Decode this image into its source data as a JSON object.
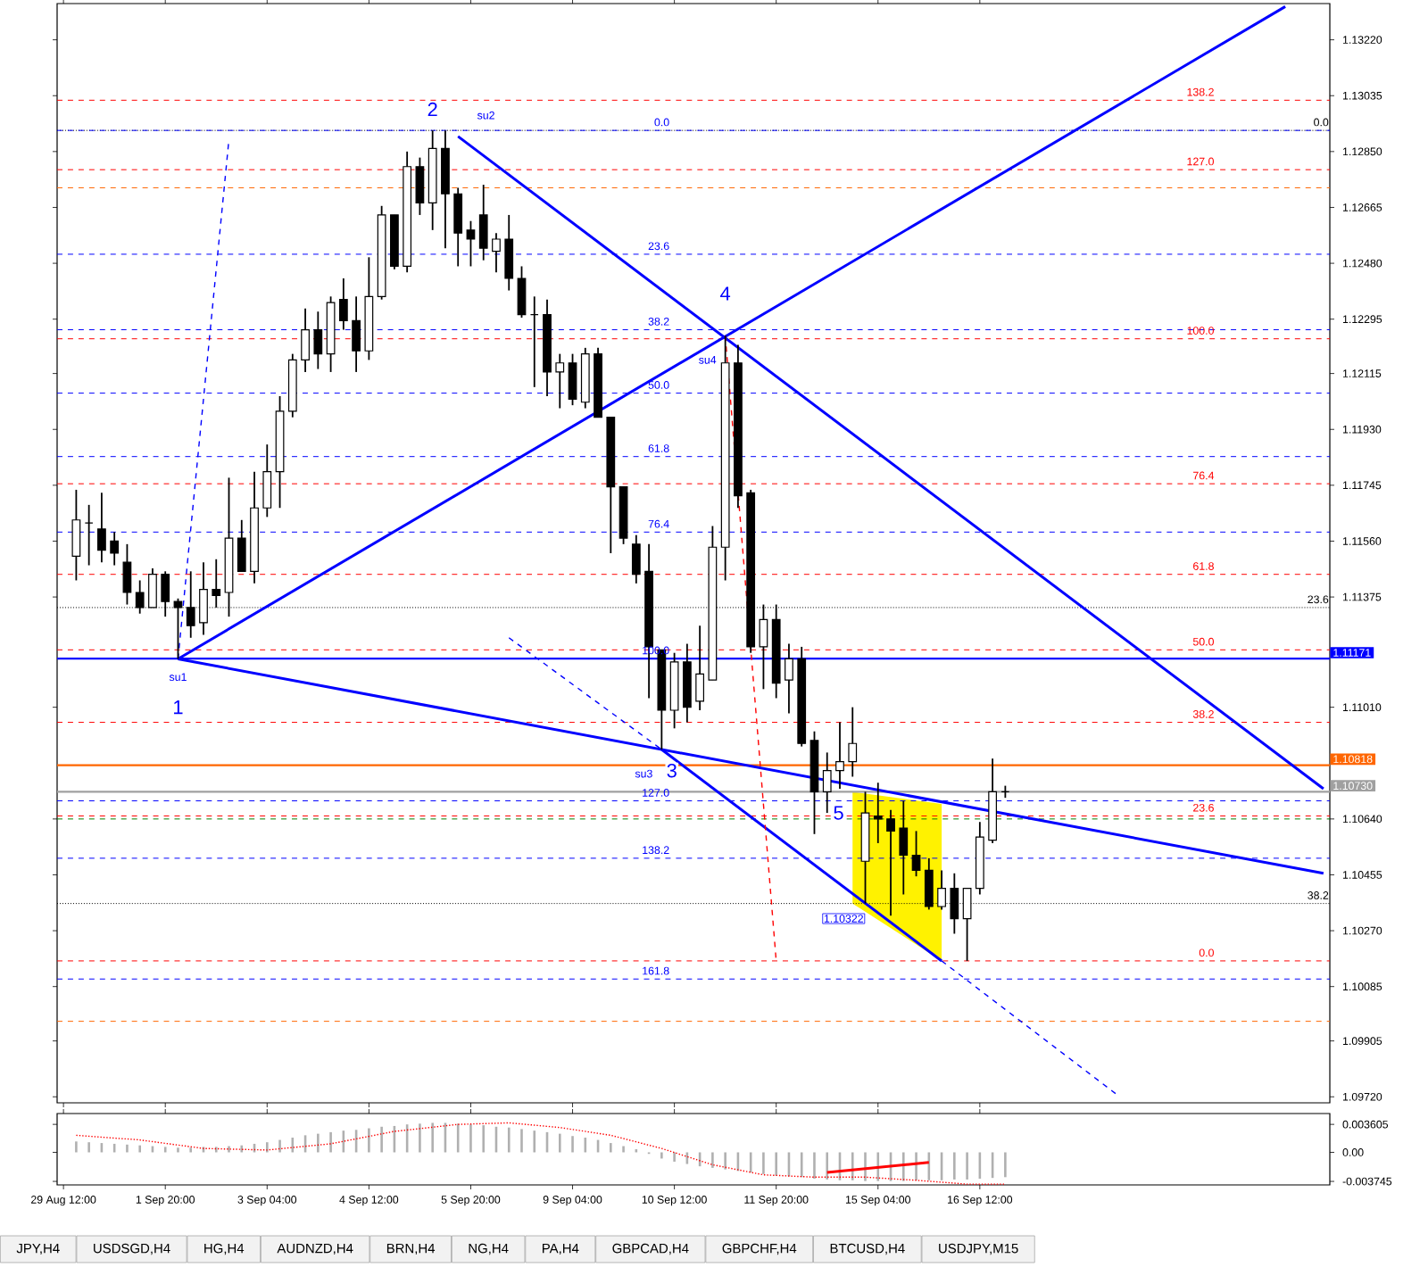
{
  "chart_data": [
    {
      "type": "candlestick",
      "ohlc": [
        null,
        [
          1.1151,
          1.1173,
          1.1143,
          1.1163
        ],
        [
          1.1162,
          1.1168,
          1.1148,
          1.1162
        ],
        [
          1.116,
          1.1172,
          1.1149,
          1.1153
        ],
        [
          1.1156,
          1.1159,
          1.1148,
          1.1152
        ],
        [
          1.1149,
          1.1155,
          1.1135,
          1.1139
        ],
        [
          1.1139,
          1.1143,
          1.1132,
          1.1134
        ],
        [
          1.1134,
          1.1147,
          1.1134,
          1.1145
        ],
        [
          1.1145,
          1.1146,
          1.1131,
          1.1136
        ],
        [
          1.1136,
          1.1137,
          1.1117,
          1.1134
        ],
        [
          1.1134,
          1.1146,
          1.1124,
          1.1128
        ],
        [
          1.1129,
          1.1149,
          1.1125,
          1.114
        ],
        [
          1.114,
          1.115,
          1.1134,
          1.1138
        ],
        [
          1.1139,
          1.1177,
          1.1131,
          1.1157
        ],
        [
          1.1157,
          1.1163,
          1.1146,
          1.1146
        ],
        [
          1.1146,
          1.1179,
          1.1142,
          1.1167
        ],
        [
          1.1167,
          1.1188,
          1.1164,
          1.1179
        ],
        [
          1.1179,
          1.1204,
          1.1167,
          1.1199
        ],
        [
          1.1199,
          1.1218,
          1.1197,
          1.1216
        ],
        [
          1.1216,
          1.1233,
          1.1212,
          1.1226
        ],
        [
          1.1226,
          1.1232,
          1.1213,
          1.1218
        ],
        [
          1.1218,
          1.1237,
          1.1212,
          1.1235
        ],
        [
          1.1236,
          1.1243,
          1.1226,
          1.1229
        ],
        [
          1.1229,
          1.1237,
          1.1212,
          1.1219
        ],
        [
          1.1219,
          1.125,
          1.1216,
          1.1237
        ],
        [
          1.1237,
          1.1267,
          1.1236,
          1.1264
        ],
        [
          1.1264,
          1.1264,
          1.1246,
          1.1247
        ],
        [
          1.1247,
          1.1285,
          1.1245,
          1.128
        ],
        [
          1.128,
          1.1283,
          1.1264,
          1.1268
        ],
        [
          1.1268,
          1.1292,
          1.1259,
          1.1286
        ],
        [
          1.1286,
          1.1292,
          1.1253,
          1.1271
        ],
        [
          1.1271,
          1.1273,
          1.1247,
          1.1258
        ],
        [
          1.1259,
          1.1262,
          1.1247,
          1.1256
        ],
        [
          1.1264,
          1.1274,
          1.1249,
          1.1253
        ],
        [
          1.1252,
          1.1258,
          1.1245,
          1.1256
        ],
        [
          1.1256,
          1.1264,
          1.1239,
          1.1243
        ],
        [
          1.1243,
          1.1247,
          1.123,
          1.1231
        ],
        [
          1.1231,
          1.1237,
          1.1207,
          1.1231
        ],
        [
          1.1231,
          1.1236,
          1.1204,
          1.1212
        ],
        [
          1.1212,
          1.1218,
          1.12,
          1.1215
        ],
        [
          1.1215,
          1.1218,
          1.1201,
          1.1203
        ],
        [
          1.1202,
          1.122,
          1.12,
          1.1218
        ],
        [
          1.1218,
          1.122,
          1.1197,
          1.1197
        ],
        [
          1.1197,
          1.1197,
          1.1152,
          1.1174
        ],
        [
          1.1174,
          1.1174,
          1.1155,
          1.1157
        ],
        [
          1.1155,
          1.1158,
          1.1142,
          1.1145
        ],
        [
          1.1146,
          1.1155,
          1.1104,
          1.1121
        ],
        [
          1.112,
          1.112,
          1.1087,
          1.11
        ],
        [
          1.11,
          1.1119,
          1.1094,
          1.1116
        ],
        [
          1.1116,
          1.1122,
          1.1096,
          1.1101
        ],
        [
          1.1103,
          1.1128,
          1.11,
          1.1112
        ],
        [
          1.111,
          1.1161,
          1.111,
          1.1154
        ],
        [
          1.1154,
          1.1224,
          1.1143,
          1.1215
        ],
        [
          1.1215,
          1.1221,
          1.1167,
          1.1171
        ],
        [
          1.1172,
          1.1173,
          1.1119,
          1.1121
        ],
        [
          1.1121,
          1.1135,
          1.1107,
          1.113
        ],
        [
          1.113,
          1.1135,
          1.1104,
          1.1109
        ],
        [
          1.111,
          1.1122,
          1.1099,
          1.1117
        ],
        [
          1.1117,
          1.1121,
          1.1088,
          1.1089
        ],
        [
          1.109,
          1.1093,
          1.1059,
          1.1073
        ],
        [
          1.1073,
          1.1086,
          1.1066,
          1.108
        ],
        [
          1.108,
          1.1096,
          1.1074,
          1.1083
        ],
        [
          1.1083,
          1.1101,
          1.1078,
          1.1089
        ],
        [
          1.105,
          1.1073,
          1.1036,
          1.1066
        ],
        [
          1.1065,
          1.1076,
          1.1056,
          1.1064
        ],
        [
          1.1064,
          1.1067,
          1.1032,
          1.106
        ],
        [
          1.1061,
          1.107,
          1.1039,
          1.1052
        ],
        [
          1.1052,
          1.106,
          1.1045,
          1.1047
        ],
        [
          1.1047,
          1.1051,
          1.1034,
          1.1035
        ],
        [
          1.1035,
          1.1047,
          1.1034,
          1.1041
        ],
        [
          1.1041,
          1.1046,
          1.1026,
          1.1031
        ],
        [
          1.1031,
          1.1041,
          1.1017,
          1.1041
        ],
        [
          1.1041,
          1.1063,
          1.1039,
          1.1058
        ],
        [
          1.1057,
          1.1084,
          1.1056,
          1.1073
        ],
        [
          1.1073,
          1.1075,
          1.1071,
          1.1073
        ],
        null,
        null,
        null,
        null,
        null,
        null,
        null,
        null,
        null,
        null,
        null,
        null,
        null,
        null,
        null,
        null,
        null,
        null,
        null,
        null,
        null,
        null,
        null,
        null,
        null
      ],
      "series": [
        {
          "type": "line",
          "color": "#0000ff",
          "line_style": "solid",
          "values": [
            null,
            null,
            null,
            null,
            null,
            null,
            null,
            null,
            null,
            1.1117,
            null,
            null,
            null,
            null,
            null,
            null,
            null,
            null,
            null,
            null,
            null,
            null,
            null,
            null,
            null,
            null,
            null,
            null,
            null,
            null,
            null,
            null,
            null,
            null,
            null,
            null,
            null,
            null,
            null,
            null,
            null,
            null,
            null,
            null,
            null,
            null,
            null,
            null,
            null,
            null,
            null,
            null,
            null,
            null,
            null,
            null,
            null,
            null,
            null,
            null,
            null,
            null,
            null,
            null,
            null,
            null,
            null,
            null,
            null,
            null,
            null,
            null,
            null,
            null,
            null,
            null,
            null,
            null,
            null,
            null,
            null,
            null,
            null,
            null,
            null,
            null,
            null,
            null,
            null,
            null,
            null,
            null,
            null,
            null,
            null,
            null,
            1.1333,
            null,
            null,
            null
          ]
        },
        {
          "type": "line",
          "color": "#0000ff",
          "line_style": "solid",
          "values": [
            null,
            null,
            null,
            null,
            null,
            null,
            null,
            null,
            null,
            null,
            null,
            null,
            null,
            null,
            null,
            null,
            null,
            null,
            null,
            null,
            null,
            null,
            null,
            null,
            null,
            null,
            null,
            null,
            null,
            null,
            null,
            1.129,
            null,
            null,
            null,
            null,
            null,
            null,
            null,
            null,
            null,
            null,
            null,
            null,
            null,
            null,
            null,
            null,
            null,
            null,
            null,
            null,
            null,
            null,
            null,
            null,
            null,
            null,
            null,
            null,
            null,
            null,
            null,
            null,
            null,
            null,
            null,
            null,
            null,
            null,
            null,
            null,
            null,
            null,
            null,
            null,
            null,
            null,
            null,
            null,
            null,
            null,
            null,
            null,
            null,
            null,
            null,
            null,
            null,
            null,
            null,
            null,
            null,
            null,
            null,
            null,
            null,
            null,
            null,
            1.1074
          ]
        },
        {
          "type": "line",
          "color": "#0000ff",
          "line_style": "solid",
          "values": [
            null,
            null,
            null,
            null,
            null,
            null,
            null,
            null,
            null,
            1.1117,
            null,
            null,
            null,
            null,
            null,
            null,
            null,
            null,
            null,
            null,
            null,
            null,
            null,
            null,
            null,
            null,
            null,
            null,
            null,
            null,
            null,
            null,
            null,
            null,
            null,
            null,
            null,
            null,
            null,
            null,
            null,
            null,
            null,
            null,
            null,
            null,
            null,
            null,
            null,
            null,
            null,
            null,
            null,
            null,
            null,
            null,
            null,
            null,
            null,
            null,
            null,
            null,
            null,
            null,
            null,
            null,
            null,
            null,
            null,
            null,
            null,
            null,
            null,
            null,
            null,
            null,
            null,
            null,
            null,
            null,
            null,
            null,
            null,
            null,
            null,
            null,
            null,
            null,
            null,
            null,
            null,
            null,
            null,
            null,
            null,
            null,
            null,
            null,
            null,
            1.1046
          ]
        },
        {
          "type": "line",
          "color": "#0000ff",
          "line_style": "solid",
          "values": [
            null,
            null,
            null,
            null,
            null,
            null,
            null,
            null,
            null,
            null,
            null,
            null,
            null,
            null,
            null,
            null,
            null,
            null,
            null,
            null,
            null,
            null,
            null,
            null,
            null,
            null,
            null,
            null,
            null,
            null,
            null,
            null,
            null,
            null,
            null,
            null,
            null,
            null,
            null,
            null,
            null,
            null,
            null,
            null,
            null,
            null,
            null,
            1.1087,
            null,
            null,
            null,
            null,
            null,
            null,
            null,
            null,
            null,
            null,
            null,
            null,
            null,
            null,
            null,
            null,
            null,
            null,
            null,
            null,
            null,
            1.1017,
            null,
            null,
            null,
            null,
            null,
            null,
            null,
            null,
            null,
            null,
            null,
            null,
            null,
            null,
            null,
            null,
            null,
            null,
            null,
            null,
            null,
            null,
            null,
            null,
            null,
            null,
            null,
            null,
            null,
            null
          ]
        },
        {
          "type": "line",
          "color": "#0000ff",
          "line_style": "dashed",
          "values": [
            null,
            null,
            null,
            null,
            null,
            null,
            null,
            null,
            null,
            null,
            null,
            null,
            null,
            null,
            null,
            null,
            null,
            null,
            null,
            null,
            null,
            null,
            null,
            null,
            null,
            null,
            null,
            null,
            null,
            null,
            null,
            null,
            null,
            null,
            null,
            null,
            null,
            null,
            null,
            null,
            null,
            null,
            null,
            null,
            null,
            null,
            null,
            null,
            null,
            null,
            null,
            null,
            null,
            null,
            null,
            null,
            null,
            null,
            null,
            null,
            null,
            null,
            null,
            null,
            null,
            null,
            null,
            null,
            null,
            1.1017,
            null,
            null,
            null,
            null,
            null,
            null,
            null,
            null,
            null,
            null,
            null,
            null,
            null,
            1.0972,
            null,
            null,
            null,
            null,
            null,
            null,
            null,
            null,
            null,
            null,
            null,
            null,
            null,
            null,
            null,
            null
          ]
        },
        {
          "type": "line",
          "color": "#0000ff",
          "line_style": "dashed",
          "values": [
            null,
            null,
            null,
            null,
            null,
            null,
            null,
            null,
            null,
            null,
            null,
            null,
            null,
            null,
            null,
            null,
            null,
            null,
            null,
            null,
            null,
            null,
            null,
            null,
            null,
            null,
            null,
            null,
            null,
            null,
            null,
            null,
            null,
            null,
            null,
            1.1124,
            null,
            null,
            null,
            null,
            null,
            null,
            null,
            null,
            null,
            null,
            null,
            1.1087,
            null,
            null,
            null,
            null,
            null,
            null,
            null,
            null,
            null,
            null,
            null,
            null,
            null,
            null,
            null,
            null,
            null,
            null,
            null,
            null,
            null,
            null,
            null,
            null,
            null,
            null,
            null,
            null,
            null,
            null,
            null,
            null,
            null,
            null,
            null,
            null,
            null,
            null,
            null,
            null,
            null,
            null,
            null,
            null,
            null,
            null,
            null,
            null,
            null,
            null,
            null,
            null
          ]
        },
        {
          "type": "line",
          "color": "#0000ff",
          "line_style": "dashed",
          "values": [
            null,
            null,
            null,
            null,
            null,
            null,
            null,
            null,
            null,
            1.1117,
            null,
            null,
            null,
            1.1289,
            null,
            null,
            null,
            null,
            null,
            null,
            null,
            null,
            null,
            null,
            null,
            null,
            null,
            null,
            null,
            null,
            null,
            null,
            null,
            null,
            null,
            null,
            null,
            null,
            null,
            null,
            null,
            null,
            null,
            null,
            null,
            null,
            null,
            null,
            null,
            null,
            null,
            null,
            null,
            null,
            null,
            null,
            null,
            null,
            null,
            null,
            null,
            null,
            null,
            null,
            null,
            null,
            null,
            null,
            null,
            null,
            null,
            null,
            null,
            null,
            null,
            null,
            null,
            null,
            null,
            null,
            null,
            null,
            null,
            null,
            null,
            null,
            null,
            null,
            null,
            null,
            null,
            null,
            null,
            null,
            null,
            null,
            null,
            null,
            null,
            null
          ]
        },
        {
          "type": "line",
          "color": "#ff0000",
          "line_style": "dashed",
          "values": [
            null,
            null,
            null,
            null,
            null,
            null,
            null,
            null,
            null,
            null,
            null,
            null,
            null,
            null,
            null,
            null,
            null,
            null,
            null,
            null,
            null,
            null,
            null,
            null,
            null,
            null,
            null,
            null,
            null,
            null,
            null,
            null,
            null,
            null,
            null,
            null,
            null,
            null,
            null,
            null,
            null,
            null,
            null,
            null,
            null,
            null,
            null,
            null,
            null,
            null,
            null,
            null,
            1.1224,
            null,
            null,
            null,
            1.1017,
            null,
            null,
            null,
            null,
            null,
            null,
            null,
            null,
            null,
            null,
            null,
            null,
            null,
            null,
            null,
            null,
            null,
            null,
            null,
            null,
            null,
            null,
            null,
            null,
            null,
            null,
            null,
            null,
            null,
            null,
            null,
            null,
            null,
            null,
            null,
            null,
            null,
            null,
            null,
            null,
            null,
            null,
            null
          ]
        }
      ],
      "ylim": [
        1.097,
        1.1334
      ],
      "yticks": [
        {
          "value": 1.1322,
          "label": "1.13220"
        },
        {
          "value": 1.13035,
          "label": "1.13035"
        },
        {
          "value": 1.1285,
          "label": "1.12850"
        },
        {
          "value": 1.12665,
          "label": "1.12665"
        },
        {
          "value": 1.1248,
          "label": "1.12480"
        },
        {
          "value": 1.12295,
          "label": "1.12295"
        },
        {
          "value": 1.12115,
          "label": "1.12115"
        },
        {
          "value": 1.1193,
          "label": "1.11930"
        },
        {
          "value": 1.11745,
          "label": "1.11745"
        },
        {
          "value": 1.1156,
          "label": "1.11560"
        },
        {
          "value": 1.11375,
          "label": "1.11375"
        },
        {
          "value": 1.1101,
          "label": "1.11010"
        },
        {
          "value": 1.1064,
          "label": "1.10640"
        },
        {
          "value": 1.10455,
          "label": "1.10455"
        },
        {
          "value": 1.1027,
          "label": "1.10270"
        },
        {
          "value": 1.10085,
          "label": "1.10085"
        },
        {
          "value": 1.09905,
          "label": "1.09905"
        },
        {
          "value": 1.0972,
          "label": "1.09720"
        }
      ],
      "tick_labels": "y",
      "ref_lines": [
        {
          "axis": "y",
          "value": 1.1273,
          "color": "#ff6600",
          "line_style": "dashed"
        },
        {
          "axis": "y",
          "value": 1.0997,
          "color": "#ff6600",
          "line_style": "dashed"
        },
        {
          "axis": "y",
          "value": 1.1064,
          "color": "#008000",
          "line_style": "dashed"
        },
        {
          "axis": "y",
          "value": 1.1292,
          "color": "#000000",
          "line_style": "dotted"
        },
        {
          "axis": "y",
          "value": 1.1134,
          "color": "#000000",
          "line_style": "dotted"
        },
        {
          "axis": "y",
          "value": 1.1036,
          "color": "#000000",
          "line_style": "dotted"
        },
        {
          "axis": "y",
          "value": 1.1292,
          "color": "#0000ff",
          "line_style": "dashed"
        },
        {
          "axis": "y",
          "value": 1.1251,
          "color": "#0000ff",
          "line_style": "dashed"
        },
        {
          "axis": "y",
          "value": 1.1226,
          "color": "#0000ff",
          "line_style": "dashed"
        },
        {
          "axis": "y",
          "value": 1.1205,
          "color": "#0000ff",
          "line_style": "dashed"
        },
        {
          "axis": "y",
          "value": 1.1184,
          "color": "#0000ff",
          "line_style": "dashed"
        },
        {
          "axis": "y",
          "value": 1.1159,
          "color": "#0000ff",
          "line_style": "dashed"
        },
        {
          "axis": "y",
          "value": 1.107,
          "color": "#0000ff",
          "line_style": "dashed"
        },
        {
          "axis": "y",
          "value": 1.1051,
          "color": "#0000ff",
          "line_style": "dashed"
        },
        {
          "axis": "y",
          "value": 1.1011,
          "color": "#0000ff",
          "line_style": "dashed"
        },
        {
          "axis": "y",
          "value": 1.1302,
          "color": "#ff0000",
          "line_style": "dashed"
        },
        {
          "axis": "y",
          "value": 1.1279,
          "color": "#ff0000",
          "line_style": "dashed"
        },
        {
          "axis": "y",
          "value": 1.1223,
          "color": "#ff0000",
          "line_style": "dashed"
        },
        {
          "axis": "y",
          "value": 1.1175,
          "color": "#ff0000",
          "line_style": "dashed"
        },
        {
          "axis": "y",
          "value": 1.1145,
          "color": "#ff0000",
          "line_style": "dashed"
        },
        {
          "axis": "y",
          "value": 1.112,
          "color": "#ff0000",
          "line_style": "dashed"
        },
        {
          "axis": "y",
          "value": 1.1096,
          "color": "#ff0000",
          "line_style": "dashed"
        },
        {
          "axis": "y",
          "value": 1.1065,
          "color": "#ff0000",
          "line_style": "dashed"
        },
        {
          "axis": "y",
          "value": 1.1017,
          "color": "#ff0000",
          "line_style": "dashed"
        },
        {
          "axis": "y",
          "value": 1.11171,
          "label": "1.11171",
          "color": "#0000ff",
          "line_style": "solid"
        },
        {
          "axis": "y",
          "value": 1.10818,
          "label": "1.10818",
          "color": "#ff6600",
          "line_style": "solid"
        },
        {
          "axis": "y",
          "value": 1.1073,
          "label": "1.10730",
          "color": "#a0a0a0",
          "line_style": "solid"
        }
      ],
      "annotations": [
        "su1",
        "1",
        "2",
        "su2",
        "su3",
        "3",
        "4",
        "su4",
        "5",
        "1.10322",
        {
          "text": "0.0",
          "y": 1.1292
        },
        {
          "text": "23.6",
          "y": 1.1134
        },
        {
          "text": "38.2",
          "y": 1.1036
        },
        {
          "text": "0.0",
          "y": 1.1292
        },
        {
          "text": "23.6",
          "y": 1.1251
        },
        {
          "text": "38.2",
          "y": 1.1226
        },
        {
          "text": "50.0",
          "y": 1.1205
        },
        {
          "text": "61.8",
          "y": 1.1184
        },
        {
          "text": "76.4",
          "y": 1.1159
        },
        {
          "text": "100.0",
          "y": 1.11171
        },
        {
          "text": "127.0",
          "y": 1.107
        },
        {
          "text": "138.2",
          "y": 1.1051
        },
        {
          "text": "161.8",
          "y": 1.1011
        },
        {
          "text": "138.2",
          "y": 1.1302
        },
        {
          "text": "127.0",
          "y": 1.1279
        },
        {
          "text": "100.0",
          "y": 1.1223
        },
        {
          "text": "76.4",
          "y": 1.1175
        },
        {
          "text": "61.8",
          "y": 1.1145
        },
        {
          "text": "50.0",
          "y": 1.112
        },
        {
          "text": "38.2",
          "y": 1.1096
        },
        {
          "text": "23.6",
          "y": 1.1065
        },
        {
          "text": "0.0",
          "y": 1.1017
        }
      ]
    },
    {
      "type": "bar",
      "categories": [
        "29 Aug 12:00",
        null,
        null,
        null,
        null,
        null,
        null,
        null,
        "1 Sep 20:00",
        null,
        null,
        null,
        null,
        null,
        null,
        null,
        "3 Sep 04:00",
        null,
        null,
        null,
        null,
        null,
        null,
        null,
        "4 Sep 12:00",
        null,
        null,
        null,
        null,
        null,
        null,
        null,
        "5 Sep 20:00",
        null,
        null,
        null,
        null,
        null,
        null,
        null,
        "9 Sep 04:00",
        null,
        null,
        null,
        null,
        null,
        null,
        null,
        "10 Sep 12:00",
        null,
        null,
        null,
        null,
        null,
        null,
        null,
        "11 Sep 20:00",
        null,
        null,
        null,
        null,
        null,
        null,
        null,
        "15 Sep 04:00",
        null,
        null,
        null,
        null,
        null,
        null,
        null,
        "16 Sep 12:00",
        null,
        null,
        null,
        null,
        null,
        null,
        null,
        null,
        null,
        null,
        null,
        null,
        null,
        null,
        null,
        null,
        null,
        null,
        null,
        null,
        null,
        null,
        null,
        null,
        null,
        null,
        null
      ],
      "series": [
        {
          "type": "bar",
          "color": "#b0b0b0",
          "values": [
            null,
            0.0014,
            0.0013,
            0.0012,
            0.0011,
            0.001,
            0.0009,
            0.0008,
            0.0007,
            0.0006,
            0.0006,
            0.0007,
            0.0007,
            0.0008,
            0.0009,
            0.0011,
            0.0013,
            0.0016,
            0.0019,
            0.0022,
            0.0024,
            0.0026,
            0.0028,
            0.0029,
            0.0031,
            0.0033,
            0.0034,
            0.0036,
            0.0037,
            0.0038,
            0.0038,
            0.0037,
            0.0036,
            0.0035,
            0.0033,
            0.0032,
            0.003,
            0.0028,
            0.0026,
            0.0024,
            0.0021,
            0.0019,
            0.0016,
            0.0012,
            0.0008,
            0.0004,
            -0.0002,
            -0.0008,
            -0.0012,
            -0.0015,
            -0.0018,
            -0.002,
            -0.0022,
            -0.0024,
            -0.0026,
            -0.0028,
            -0.003,
            -0.0031,
            -0.0032,
            -0.0034,
            -0.0035,
            -0.0036,
            -0.0036,
            -0.0037,
            -0.0037,
            -0.0037,
            -0.0037,
            -0.0036,
            -0.0036,
            -0.0036,
            -0.0035,
            -0.0035,
            -0.0034,
            -0.0033,
            -0.0032,
            null,
            null,
            null,
            null,
            null,
            null,
            null,
            null,
            null,
            null,
            null,
            null,
            null,
            null,
            null,
            null,
            null,
            null,
            null,
            null,
            null,
            null,
            null,
            null,
            null
          ]
        },
        {
          "type": "line",
          "color": "#ff0000",
          "line_style": "dotted",
          "values": [
            null,
            0.0022,
            null,
            null,
            null,
            null,
            0.0016,
            null,
            null,
            null,
            null,
            0.0005,
            null,
            null,
            null,
            null,
            0.0003,
            null,
            null,
            null,
            null,
            0.0011,
            null,
            null,
            null,
            null,
            0.0027,
            null,
            null,
            null,
            null,
            0.0036,
            null,
            null,
            null,
            0.0038,
            null,
            null,
            null,
            0.0032,
            null,
            null,
            null,
            0.0022,
            null,
            null,
            null,
            0.0005,
            null,
            null,
            null,
            -0.0016,
            null,
            null,
            null,
            -0.0029,
            null,
            null,
            null,
            -0.0032,
            null,
            null,
            null,
            -0.0032,
            null,
            null,
            null,
            -0.0036,
            null,
            null,
            null,
            -0.0041,
            null,
            null,
            -0.0041,
            null,
            null,
            null,
            null,
            null,
            null,
            null,
            null,
            null,
            null,
            null,
            null,
            null,
            null,
            null,
            null,
            null,
            null,
            null,
            null,
            null,
            null,
            null,
            null,
            null
          ]
        },
        {
          "type": "line",
          "color": "#ff0000",
          "line_style": "solid",
          "values": [
            null,
            null,
            null,
            null,
            null,
            null,
            null,
            null,
            null,
            null,
            null,
            null,
            null,
            null,
            null,
            null,
            null,
            null,
            null,
            null,
            null,
            null,
            null,
            null,
            null,
            null,
            null,
            null,
            null,
            null,
            null,
            null,
            null,
            null,
            null,
            null,
            null,
            null,
            null,
            null,
            null,
            null,
            null,
            null,
            null,
            null,
            null,
            null,
            null,
            null,
            null,
            null,
            null,
            null,
            null,
            null,
            null,
            null,
            null,
            null,
            -0.0026,
            null,
            null,
            null,
            null,
            null,
            null,
            null,
            -0.0013,
            null,
            null,
            null,
            null,
            null,
            null,
            null,
            null,
            null,
            null,
            null,
            null,
            null,
            null,
            null,
            null,
            null,
            null,
            null,
            null,
            null,
            null,
            null,
            null,
            null,
            null,
            null,
            null,
            null,
            null,
            null
          ]
        }
      ],
      "ylim": [
        -0.0042,
        0.005
      ],
      "yticks": [
        {
          "value": 0.003605,
          "label": "0.003605"
        },
        {
          "value": 0,
          "label": "0.00"
        },
        {
          "value": -0.003745,
          "label": "-0.003745"
        }
      ],
      "annotations": [
        "JPY,H4",
        "USDSGD,H4",
        "HG,H4",
        "AUDNZD,H4",
        "BRN,H4",
        "NG,H4",
        "PA,H4",
        "GBPCAD,H4",
        "GBPCHF,H4",
        "BTCUSD,H4",
        "USDJPY,M15"
      ]
    }
  ]
}
